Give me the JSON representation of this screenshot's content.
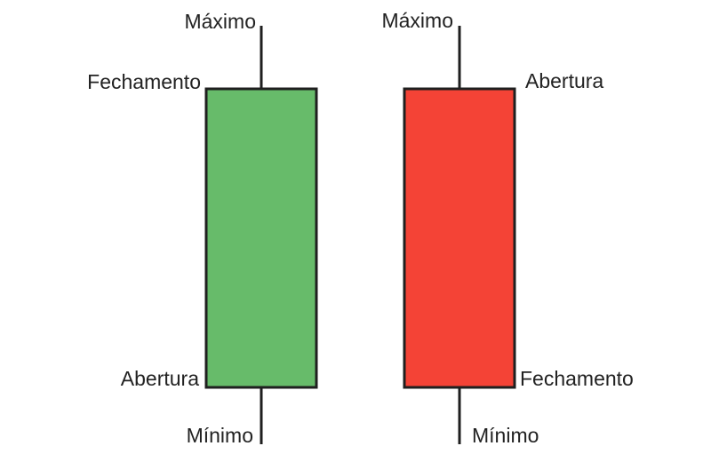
{
  "colors": {
    "bullish": "#67bb6a",
    "bearish": "#f44336",
    "outline": "#1f1f1f",
    "text": "#222222"
  },
  "candles": [
    {
      "type": "bullish",
      "labels": {
        "high": "Máximo",
        "close": "Fechamento",
        "open": "Abertura",
        "low": "Mínimo"
      }
    },
    {
      "type": "bearish",
      "labels": {
        "high": "Máximo",
        "open": "Abertura",
        "close": "Fechamento",
        "low": "Mínimo"
      }
    }
  ]
}
